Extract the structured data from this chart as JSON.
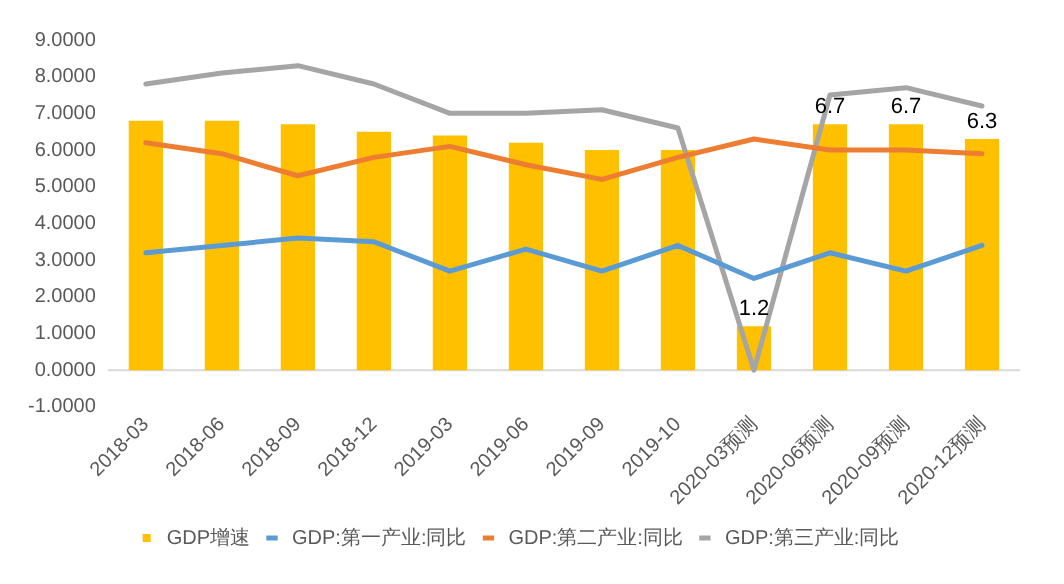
{
  "chart_data": {
    "type": "bar",
    "categories": [
      "2018-03",
      "2018-06",
      "2018-09",
      "2018-12",
      "2019-03",
      "2019-06",
      "2019-09",
      "2019-10",
      "2020-03预测",
      "2020-06预测",
      "2020-09预测",
      "2020-12预测"
    ],
    "series": [
      {
        "name": "GDP增速",
        "color": "#ffc000",
        "values": [
          6.8,
          6.8,
          6.7,
          6.5,
          6.4,
          6.2,
          6.0,
          6.0,
          1.2,
          6.7,
          6.7,
          6.3
        ],
        "value_labels": [
          null,
          null,
          null,
          null,
          null,
          null,
          null,
          null,
          "1.2",
          "6.7",
          "6.7",
          "6.3"
        ]
      },
      {
        "name": "GDP:第一产业:同比",
        "type": "line",
        "color": "#5b9bd5",
        "values": [
          3.2,
          3.4,
          3.6,
          3.5,
          2.7,
          3.3,
          2.7,
          3.4,
          2.5,
          3.2,
          2.7,
          3.4
        ]
      },
      {
        "name": "GDP:第二产业:同比",
        "type": "line",
        "color": "#ed7d31",
        "values": [
          6.2,
          5.9,
          5.3,
          5.8,
          6.1,
          5.6,
          5.2,
          5.8,
          6.3,
          6.0,
          6.0,
          5.9
        ]
      },
      {
        "name": "GDP:第三产业:同比",
        "type": "line",
        "color": "#a5a5a5",
        "values": [
          7.8,
          8.1,
          8.3,
          7.8,
          7.0,
          7.0,
          7.1,
          6.6,
          0.0,
          7.5,
          7.7,
          7.2
        ]
      }
    ],
    "ylim": [
      -1,
      9
    ],
    "yticks": [
      {
        "value": -1,
        "label": "-1.0000"
      },
      {
        "value": 0,
        "label": "0.0000"
      },
      {
        "value": 1,
        "label": "1.0000"
      },
      {
        "value": 2,
        "label": "2.0000"
      },
      {
        "value": 3,
        "label": "3.0000"
      },
      {
        "value": 4,
        "label": "4.0000"
      },
      {
        "value": 5,
        "label": "5.0000"
      },
      {
        "value": 6,
        "label": "6.0000"
      },
      {
        "value": 7,
        "label": "7.0000"
      },
      {
        "value": 8,
        "label": "8.0000"
      },
      {
        "value": 9,
        "label": "9.0000"
      }
    ],
    "grid": false,
    "legend": "bottom",
    "marker": "none",
    "line_style": "solid"
  }
}
